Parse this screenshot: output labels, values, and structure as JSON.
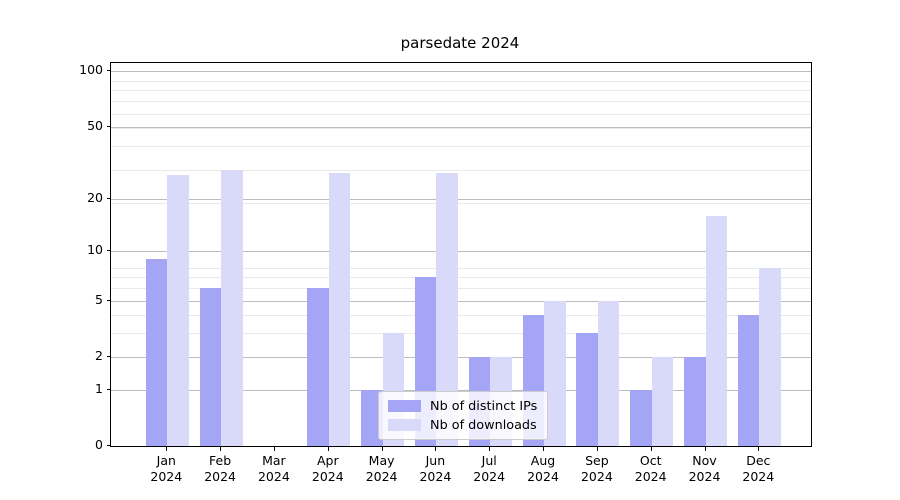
{
  "title": "parsedate 2024",
  "chart_data": {
    "type": "bar",
    "scale": "log1p",
    "title": "parsedate 2024",
    "categories": [
      "Jan",
      "Feb",
      "Mar",
      "Apr",
      "May",
      "Jun",
      "Jul",
      "Aug",
      "Sep",
      "Oct",
      "Nov",
      "Dec"
    ],
    "year": "2024",
    "series": [
      {
        "name": "Nb of distinct IPs",
        "color": "#a5a5f5",
        "values": [
          9,
          6,
          0,
          6,
          1,
          7,
          2,
          4,
          3,
          1,
          2,
          4
        ]
      },
      {
        "name": "Nb of downloads",
        "color": "#d9d9fa",
        "values": [
          27,
          29,
          0,
          28,
          3,
          28,
          2,
          5,
          5,
          2,
          16,
          8
        ]
      }
    ],
    "yticks": [
      0,
      1,
      2,
      5,
      10,
      20,
      50,
      100
    ],
    "ylim": [
      0,
      110.7
    ],
    "xlabel": "",
    "ylabel": "",
    "grid": {
      "which": "both",
      "major_color": "#bcbcbc",
      "minor_color": "#e9e9e9"
    },
    "legend": {
      "position": "lower center",
      "entries": [
        "Nb of distinct IPs",
        "Nb of downloads"
      ]
    }
  }
}
